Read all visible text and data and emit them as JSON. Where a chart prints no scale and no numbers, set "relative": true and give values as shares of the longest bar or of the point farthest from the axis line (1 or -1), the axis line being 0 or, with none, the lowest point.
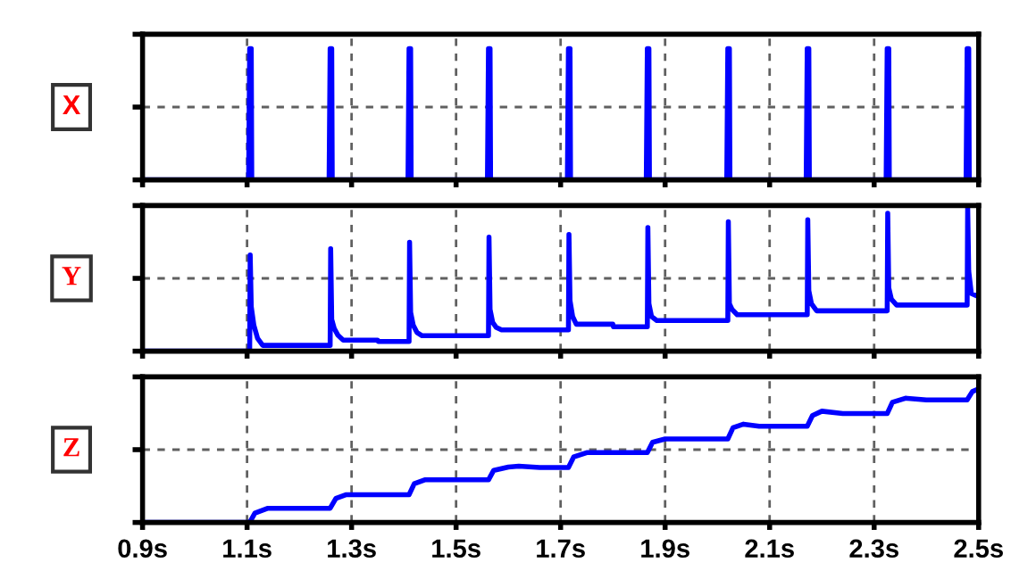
{
  "chart_data": [
    {
      "type": "line",
      "ylabel": "X",
      "relative": true,
      "xlim": [
        0.9,
        2.5
      ],
      "tick_labels": false,
      "grid": true,
      "legend": false,
      "series": [
        {
          "color": "#0000ff",
          "x": [
            0.9,
            1.103,
            1.105,
            1.108,
            1.109,
            1.257,
            1.259,
            1.262,
            1.263,
            1.408,
            1.41,
            1.413,
            1.414,
            1.56,
            1.562,
            1.565,
            1.566,
            1.713,
            1.715,
            1.718,
            1.719,
            1.864,
            1.866,
            1.869,
            1.87,
            2.018,
            2.02,
            2.023,
            2.024,
            2.17,
            2.172,
            2.175,
            2.176,
            2.323,
            2.325,
            2.328,
            2.329,
            2.476,
            2.478,
            2.481,
            2.482,
            2.5
          ],
          "values": [
            0,
            0,
            1,
            1,
            0,
            0,
            1,
            1,
            0,
            0,
            1,
            1,
            0,
            0,
            1,
            1,
            0,
            0,
            1,
            1,
            0,
            0,
            1,
            1,
            0,
            0,
            1,
            1,
            0,
            0,
            1,
            1,
            0,
            0,
            1,
            1,
            0,
            0,
            1,
            1,
            0,
            0
          ]
        }
      ]
    },
    {
      "type": "line",
      "ylabel": "Y",
      "relative": true,
      "xlim": [
        0.9,
        2.5
      ],
      "tick_labels": false,
      "grid": true,
      "legend": false,
      "series": [
        {
          "color": "#0000ff",
          "x": [
            0.9,
            1.105,
            1.106,
            1.108,
            1.113,
            1.12,
            1.13,
            1.259,
            1.26,
            1.262,
            1.267,
            1.274,
            1.284,
            1.35,
            1.351,
            1.41,
            1.411,
            1.413,
            1.418,
            1.425,
            1.435,
            1.562,
            1.563,
            1.565,
            1.57,
            1.577,
            1.587,
            1.715,
            1.716,
            1.718,
            1.723,
            1.73,
            1.8,
            1.801,
            1.866,
            1.867,
            1.869,
            1.874,
            1.884,
            2.02,
            2.021,
            2.023,
            2.028,
            2.038,
            2.172,
            2.173,
            2.175,
            2.18,
            2.19,
            2.325,
            2.326,
            2.328,
            2.333,
            2.343,
            2.478,
            2.479,
            2.481,
            2.486,
            2.5
          ],
          "values": [
            0,
            0,
            0.667,
            0.31,
            0.18,
            0.09,
            0.04,
            0.04,
            0.711,
            0.22,
            0.156,
            0.11,
            0.076,
            0.076,
            0.067,
            0.067,
            0.756,
            0.27,
            0.18,
            0.13,
            0.107,
            0.107,
            0.791,
            0.29,
            0.2,
            0.164,
            0.147,
            0.147,
            0.809,
            0.35,
            0.24,
            0.187,
            0.187,
            0.169,
            0.169,
            0.858,
            0.33,
            0.24,
            0.213,
            0.213,
            0.898,
            0.33,
            0.29,
            0.253,
            0.253,
            0.911,
            0.42,
            0.33,
            0.28,
            0.28,
            0.956,
            0.44,
            0.36,
            0.32,
            0.32,
            1,
            0.556,
            0.4,
            0.378
          ]
        }
      ]
    },
    {
      "type": "line",
      "ylabel": "Z",
      "relative": true,
      "xlim": [
        0.9,
        2.5
      ],
      "xticks": [
        {
          "value": 0.9,
          "label": "0.9s"
        },
        {
          "value": 1.1,
          "label": "1.1s"
        },
        {
          "value": 1.3,
          "label": "1.3s"
        },
        {
          "value": 1.5,
          "label": "1.5s"
        },
        {
          "value": 1.7,
          "label": "1.7s"
        },
        {
          "value": 1.9,
          "label": "1.9s"
        },
        {
          "value": 2.1,
          "label": "2.1s"
        },
        {
          "value": 2.3,
          "label": "2.3s"
        },
        {
          "value": 2.5,
          "label": "2.5s"
        }
      ],
      "tick_labels": "x",
      "grid": true,
      "legend": false,
      "series": [
        {
          "color": "#0000ff",
          "x": [
            0.9,
            1.105,
            1.115,
            1.14,
            1.259,
            1.27,
            1.29,
            1.41,
            1.42,
            1.44,
            1.562,
            1.572,
            1.6,
            1.62,
            1.66,
            1.715,
            1.725,
            1.75,
            1.866,
            1.876,
            1.9,
            2.02,
            2.03,
            2.05,
            2.08,
            2.172,
            2.182,
            2.2,
            2.24,
            2.325,
            2.335,
            2.36,
            2.4,
            2.478,
            2.488,
            2.5
          ],
          "values": [
            0,
            0,
            0.07,
            0.106,
            0.106,
            0.18,
            0.208,
            0.208,
            0.29,
            0.319,
            0.319,
            0.39,
            0.415,
            0.421,
            0.412,
            0.412,
            0.49,
            0.523,
            0.523,
            0.6,
            0.625,
            0.625,
            0.71,
            0.736,
            0.72,
            0.72,
            0.8,
            0.833,
            0.815,
            0.815,
            0.9,
            0.93,
            0.917,
            0.917,
            0.98,
            1
          ]
        }
      ]
    }
  ]
}
